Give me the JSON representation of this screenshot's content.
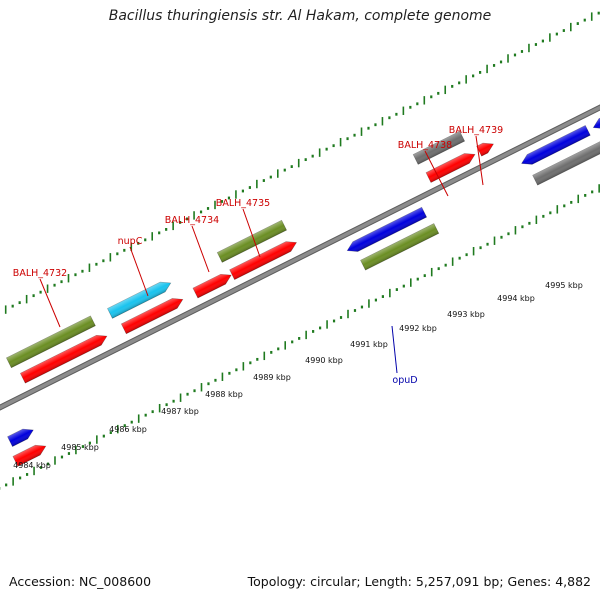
{
  "title": "Bacillus thuringiensis str. Al Hakam, complete genome",
  "footer": {
    "accession": "Accession: NC_008600",
    "summary": "Topology: circular; Length: 5,257,091 bp; Genes: 4,882"
  },
  "colors": {
    "backbone": "#8c8c8c",
    "tick": "#1f7a1f",
    "label_top": "#cc0000",
    "label_bottom": "#0000aa",
    "gene_red": "#ff0000",
    "gene_olive": "#6b8e23",
    "gene_cyan": "#19c3ee",
    "gene_blue": "#0000dd",
    "gene_gray": "#6e6e6e"
  },
  "scale_labels": [
    "4984 kbp",
    "4985 kbp",
    "4986 kbp",
    "4987 kbp",
    "4988 kbp",
    "4989 kbp",
    "4990 kbp",
    "4991 kbp",
    "4992 kbp",
    "4993 kbp",
    "4994 kbp",
    "4995 kbp"
  ],
  "gene_labels": [
    {
      "text": "BALH_4732",
      "side": "top"
    },
    {
      "text": "nupC",
      "side": "top"
    },
    {
      "text": "BALH_4734",
      "side": "top"
    },
    {
      "text": "BALH_4735",
      "side": "top"
    },
    {
      "text": "BALH_4738",
      "side": "top"
    },
    {
      "text": "BALH_4739",
      "side": "top"
    },
    {
      "text": "opuD",
      "side": "bottom"
    }
  ],
  "features": [
    {
      "color": "gene_blue"
    },
    {
      "color": "gene_red"
    },
    {
      "color": "gene_olive"
    },
    {
      "color": "gene_red"
    },
    {
      "color": "gene_cyan"
    },
    {
      "color": "gene_red"
    },
    {
      "color": "gene_red"
    },
    {
      "color": "gene_olive"
    },
    {
      "color": "gene_red"
    },
    {
      "color": "gene_blue"
    },
    {
      "color": "gene_olive"
    },
    {
      "color": "gene_gray"
    },
    {
      "color": "gene_red"
    },
    {
      "color": "gene_red"
    },
    {
      "color": "gene_blue"
    },
    {
      "color": "gene_gray"
    },
    {
      "color": "gene_blue"
    }
  ]
}
